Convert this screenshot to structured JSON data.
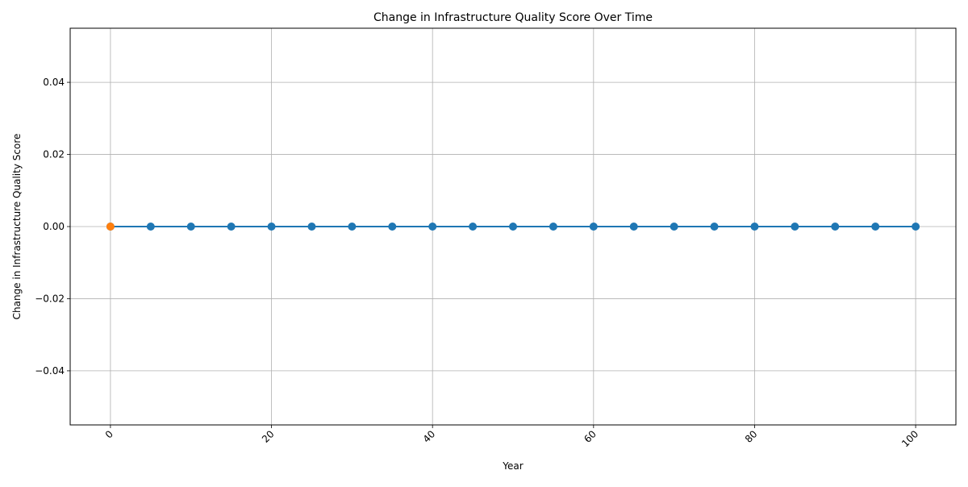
{
  "chart_data": {
    "type": "line",
    "title": "Change in Infrastructure Quality Score Over Time",
    "xlabel": "Year",
    "ylabel": "Change in Infrastructure Quality Score",
    "xlim": [
      -5,
      105
    ],
    "ylim": [
      -0.055,
      0.055
    ],
    "x_ticks": [
      0,
      20,
      40,
      60,
      80,
      100
    ],
    "x_tick_labels": [
      "0",
      "20",
      "40",
      "60",
      "80",
      "100"
    ],
    "y_ticks": [
      -0.04,
      -0.02,
      0.0,
      0.02,
      0.04
    ],
    "y_tick_labels": [
      "−0.04",
      "−0.02",
      "0.00",
      "0.02",
      "0.04"
    ],
    "grid": true,
    "legend": "none",
    "x_tick_rotation": "45 degrees",
    "series": [
      {
        "color": "#1f77b4",
        "marker": "circle",
        "x": [
          0,
          5,
          10,
          15,
          20,
          25,
          30,
          35,
          40,
          45,
          50,
          55,
          60,
          65,
          70,
          75,
          80,
          85,
          90,
          95,
          100
        ],
        "y": [
          0,
          0,
          0,
          0,
          0,
          0,
          0,
          0,
          0,
          0,
          0,
          0,
          0,
          0,
          0,
          0,
          0,
          0,
          0,
          0,
          0
        ]
      },
      {
        "color": "#ff7f0e",
        "marker": "circle",
        "x": [
          0
        ],
        "y": [
          0
        ]
      }
    ]
  }
}
